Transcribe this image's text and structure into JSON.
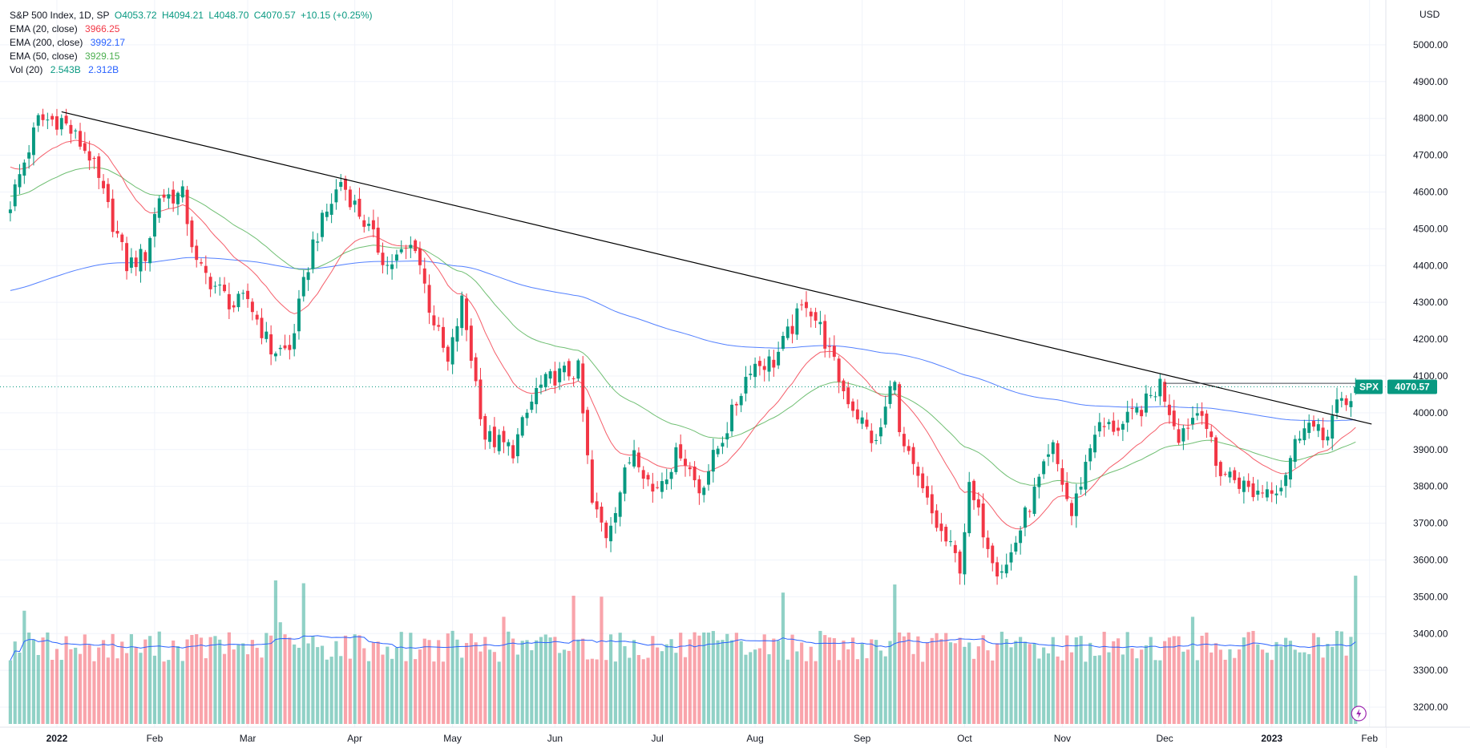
{
  "legend": {
    "main": {
      "label": "S&P 500 Index, 1D, SP",
      "open": "O4053.72",
      "high": "H4094.21",
      "low": "L4048.70",
      "close": "C4070.57",
      "change": "+10.15 (+0.25%)"
    },
    "ema20": {
      "label": "EMA (20, close)",
      "value": "3966.25"
    },
    "ema200": {
      "label": "EMA (200, close)",
      "value": "3992.17"
    },
    "ema50": {
      "label": "EMA (50, close)",
      "value": "3929.15"
    },
    "vol": {
      "label": "Vol (20)",
      "value1": "2.543B",
      "value2": "2.312B"
    }
  },
  "colors": {
    "up": "#089981",
    "down": "#f23645",
    "ema20": "#f23645",
    "ema200": "#2962ff",
    "ema50": "#4caf50",
    "vol_ma": "#2962ff",
    "trendline": "#000000",
    "price_line": "#089981"
  },
  "price_tag": {
    "symbol": "SPX",
    "value": "4070.57"
  },
  "chart_data": {
    "type": "candlestick",
    "currency": "USD",
    "ylim": [
      3150,
      5100
    ],
    "y_ticks": [
      3200,
      3300,
      3400,
      3500,
      3600,
      3700,
      3800,
      3900,
      4000,
      4100,
      4200,
      4300,
      4400,
      4500,
      4600,
      4700,
      4800,
      4900,
      5000
    ],
    "x_ticks": [
      {
        "label": "2022",
        "date": "2022-01-03",
        "bold": true
      },
      {
        "label": "Feb",
        "date": "2022-02-01"
      },
      {
        "label": "Mar",
        "date": "2022-03-01"
      },
      {
        "label": "Apr",
        "date": "2022-04-01"
      },
      {
        "label": "May",
        "date": "2022-05-02"
      },
      {
        "label": "Jun",
        "date": "2022-06-01"
      },
      {
        "label": "Jul",
        "date": "2022-07-01"
      },
      {
        "label": "Aug",
        "date": "2022-08-01"
      },
      {
        "label": "Sep",
        "date": "2022-09-01"
      },
      {
        "label": "Oct",
        "date": "2022-10-03"
      },
      {
        "label": "Nov",
        "date": "2022-11-01"
      },
      {
        "label": "Dec",
        "date": "2022-12-01"
      },
      {
        "label": "2023",
        "date": "2023-01-03",
        "bold": true
      },
      {
        "label": "Feb",
        "date": "2023-02-01"
      }
    ],
    "date_range": [
      "2021-12-20",
      "2023-02-06"
    ],
    "last_close": 4070.57,
    "trendline": {
      "from": {
        "date": "2022-01-04",
        "value": 4818
      },
      "to": {
        "date": "2023-01-27",
        "value": 3965
      }
    },
    "resistance_line": {
      "from": {
        "date": "2022-12-01",
        "value": 4080
      },
      "to": {
        "date": "2023-01-31",
        "value": 4080
      }
    },
    "anchors": [
      [
        "2021-12-20",
        4570
      ],
      [
        "2021-12-28",
        4795
      ],
      [
        "2022-01-04",
        4796
      ],
      [
        "2022-01-12",
        4700
      ],
      [
        "2022-01-20",
        4480
      ],
      [
        "2022-01-24",
        4400
      ],
      [
        "2022-01-28",
        4430
      ],
      [
        "2022-02-02",
        4590
      ],
      [
        "2022-02-09",
        4590
      ],
      [
        "2022-02-14",
        4400
      ],
      [
        "2022-02-24",
        4290
      ],
      [
        "2022-03-01",
        4310
      ],
      [
        "2022-03-08",
        4170
      ],
      [
        "2022-03-14",
        4170
      ],
      [
        "2022-03-21",
        4460
      ],
      [
        "2022-03-29",
        4630
      ],
      [
        "2022-04-05",
        4520
      ],
      [
        "2022-04-12",
        4400
      ],
      [
        "2022-04-20",
        4460
      ],
      [
        "2022-04-25",
        4290
      ],
      [
        "2022-04-29",
        4130
      ],
      [
        "2022-05-04",
        4300
      ],
      [
        "2022-05-11",
        3935
      ],
      [
        "2022-05-19",
        3900
      ],
      [
        "2022-05-26",
        4060
      ],
      [
        "2022-06-01",
        4100
      ],
      [
        "2022-06-08",
        4115
      ],
      [
        "2022-06-13",
        3750
      ],
      [
        "2022-06-16",
        3670
      ],
      [
        "2022-06-24",
        3910
      ],
      [
        "2022-06-30",
        3785
      ],
      [
        "2022-07-08",
        3900
      ],
      [
        "2022-07-14",
        3790
      ],
      [
        "2022-07-22",
        3962
      ],
      [
        "2022-07-29",
        4130
      ],
      [
        "2022-08-05",
        4140
      ],
      [
        "2022-08-16",
        4305
      ],
      [
        "2022-08-19",
        4230
      ],
      [
        "2022-08-26",
        4060
      ],
      [
        "2022-09-06",
        3910
      ],
      [
        "2022-09-12",
        4110
      ],
      [
        "2022-09-13",
        3932
      ],
      [
        "2022-09-23",
        3693
      ],
      [
        "2022-09-30",
        3585
      ],
      [
        "2022-10-04",
        3790
      ],
      [
        "2022-10-12",
        3580
      ],
      [
        "2022-10-14",
        3585
      ],
      [
        "2022-10-21",
        3752
      ],
      [
        "2022-10-28",
        3901
      ],
      [
        "2022-11-03",
        3720
      ],
      [
        "2022-11-10",
        3956
      ],
      [
        "2022-11-18",
        3965
      ],
      [
        "2022-11-25",
        4026
      ],
      [
        "2022-11-30",
        4080
      ],
      [
        "2022-12-06",
        3942
      ],
      [
        "2022-12-13",
        4019
      ],
      [
        "2022-12-16",
        3852
      ],
      [
        "2022-12-22",
        3822
      ],
      [
        "2022-12-28",
        3783
      ],
      [
        "2023-01-05",
        3808
      ],
      [
        "2023-01-12",
        3983
      ],
      [
        "2023-01-18",
        3928
      ],
      [
        "2023-01-23",
        4019
      ],
      [
        "2023-01-25",
        4016
      ],
      [
        "2023-01-27",
        4070
      ]
    ],
    "volume": {
      "ylim": [
        0,
        9.5
      ],
      "unit": "B",
      "ma_period": 20
    }
  }
}
